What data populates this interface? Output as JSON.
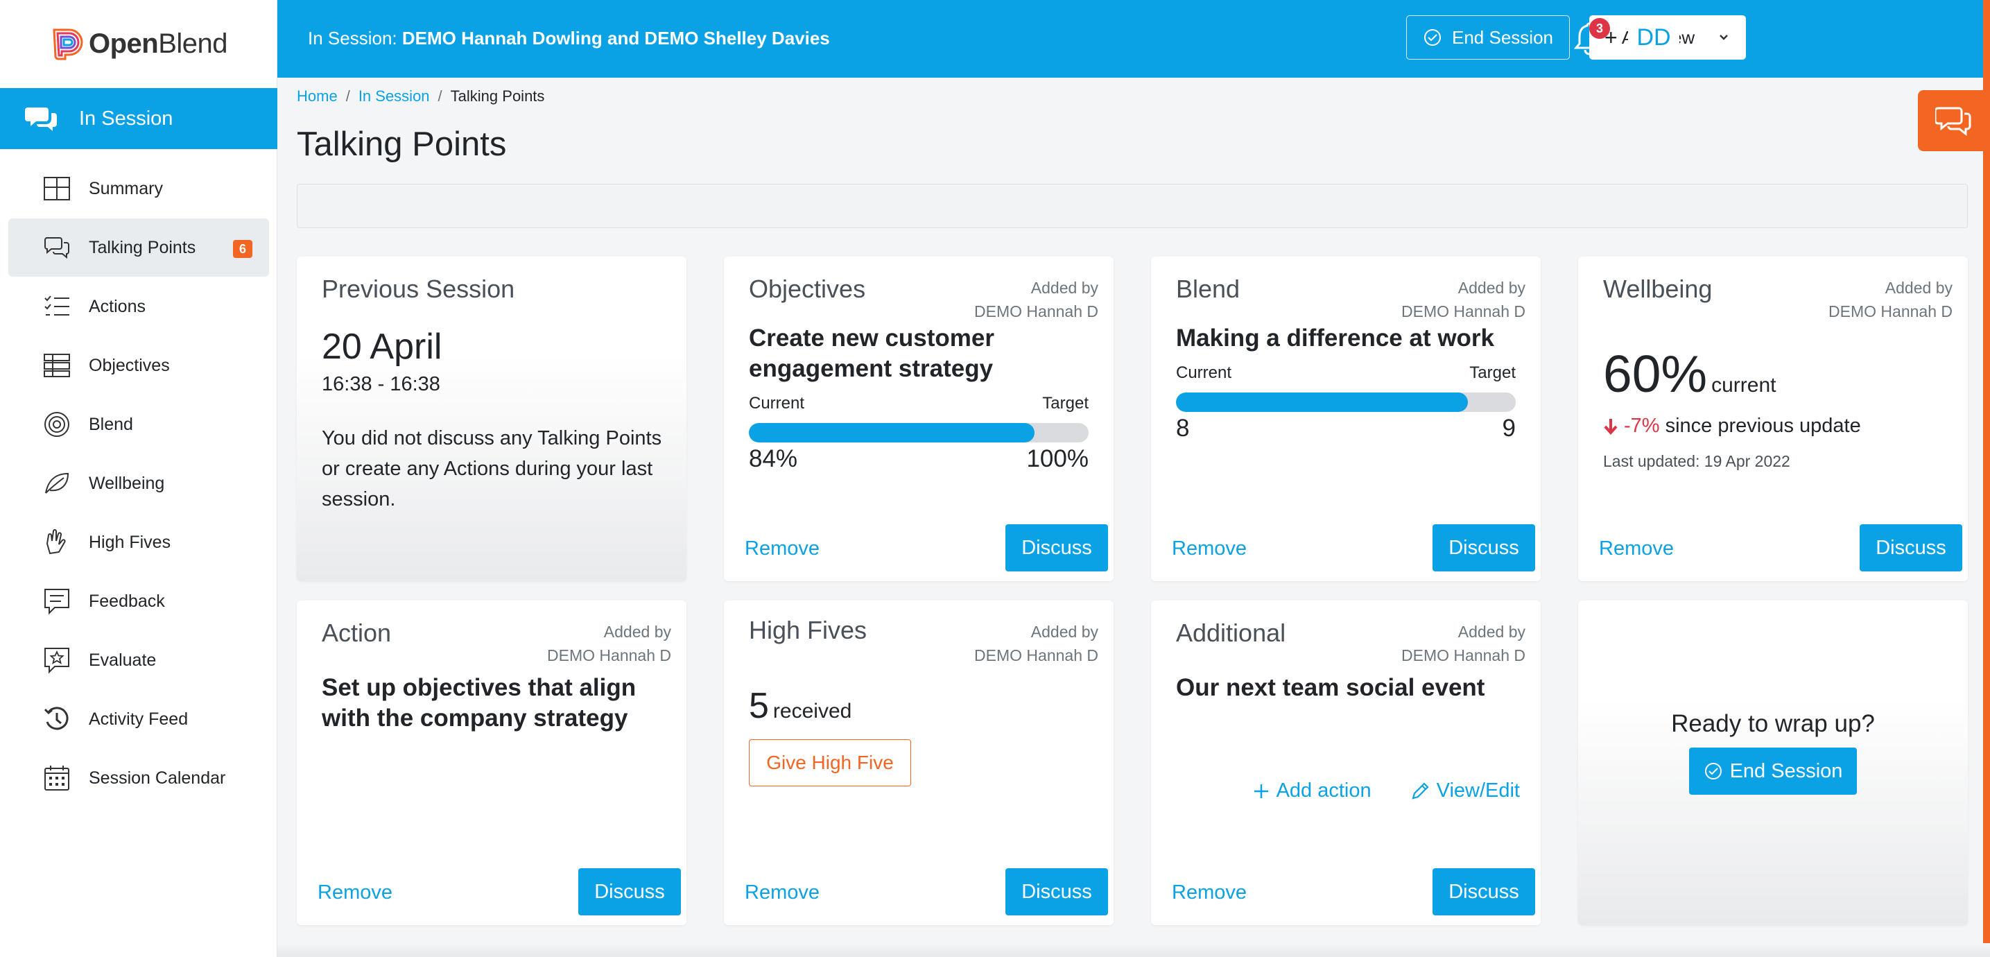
{
  "app": {
    "logo_bold": "Open",
    "logo_light": "Blend"
  },
  "sidebar": {
    "active_section": "In Session",
    "items": [
      {
        "label": "Summary",
        "icon": "summary-grid-icon"
      },
      {
        "label": "Talking Points",
        "icon": "talking-points-icon",
        "badge": "6",
        "selected": true
      },
      {
        "label": "Actions",
        "icon": "actions-list-icon"
      },
      {
        "label": "Objectives",
        "icon": "objectives-icon"
      },
      {
        "label": "Blend",
        "icon": "blend-target-icon"
      },
      {
        "label": "Wellbeing",
        "icon": "wellbeing-leaf-icon"
      },
      {
        "label": "High Fives",
        "icon": "high-five-icon"
      },
      {
        "label": "Feedback",
        "icon": "feedback-icon"
      },
      {
        "label": "Evaluate",
        "icon": "evaluate-star-icon"
      },
      {
        "label": "Activity Feed",
        "icon": "history-icon"
      },
      {
        "label": "Session Calendar",
        "icon": "calendar-icon"
      }
    ]
  },
  "header": {
    "session_prefix": "In Session:",
    "session_names": "DEMO Hannah Dowling and DEMO Shelley Davies",
    "end_session": "End Session",
    "add_new": "Add New",
    "notifications_count": "3",
    "avatar_initials": "DD"
  },
  "breadcrumb": {
    "home": "Home",
    "in_session": "In Session",
    "current": "Talking Points"
  },
  "page_title": "Talking Points",
  "common": {
    "remove": "Remove",
    "discuss": "Discuss",
    "added_by_label": "Added by",
    "added_by_name": "DEMO Hannah D"
  },
  "cards": {
    "previous": {
      "title": "Previous Session",
      "date": "20 April",
      "time": "16:38 - 16:38",
      "text": "You did not discuss any Talking Points or create any Actions during your last session."
    },
    "objectives": {
      "title": "Objectives",
      "headline": "Create new customer engagement strategy",
      "current_label": "Current",
      "target_label": "Target",
      "current_value": "84%",
      "target_value": "100%",
      "progress": 0.84
    },
    "blend": {
      "title": "Blend",
      "headline": "Making a difference at work",
      "current_label": "Current",
      "target_label": "Target",
      "current_value": "8",
      "target_value": "9",
      "progress": 0.86
    },
    "wellbeing": {
      "title": "Wellbeing",
      "percent": "60%",
      "current_word": "current",
      "change": "-7%",
      "change_text": "since previous update",
      "last_updated": "Last updated: 19 Apr 2022"
    },
    "action": {
      "title": "Action",
      "headline": "Set up objectives that align with the company strategy"
    },
    "high_fives": {
      "title": "High Fives",
      "count": "5",
      "received": "received",
      "give_button": "Give High Five"
    },
    "additional": {
      "title": "Additional",
      "headline": "Our next team social event",
      "add_action": "Add action",
      "view_edit": "View/Edit"
    },
    "wrap": {
      "question": "Ready to wrap up?",
      "button": "End Session"
    }
  },
  "colors": {
    "primary": "#0aa2e5",
    "accent": "#f26522",
    "danger": "#dc3545"
  }
}
